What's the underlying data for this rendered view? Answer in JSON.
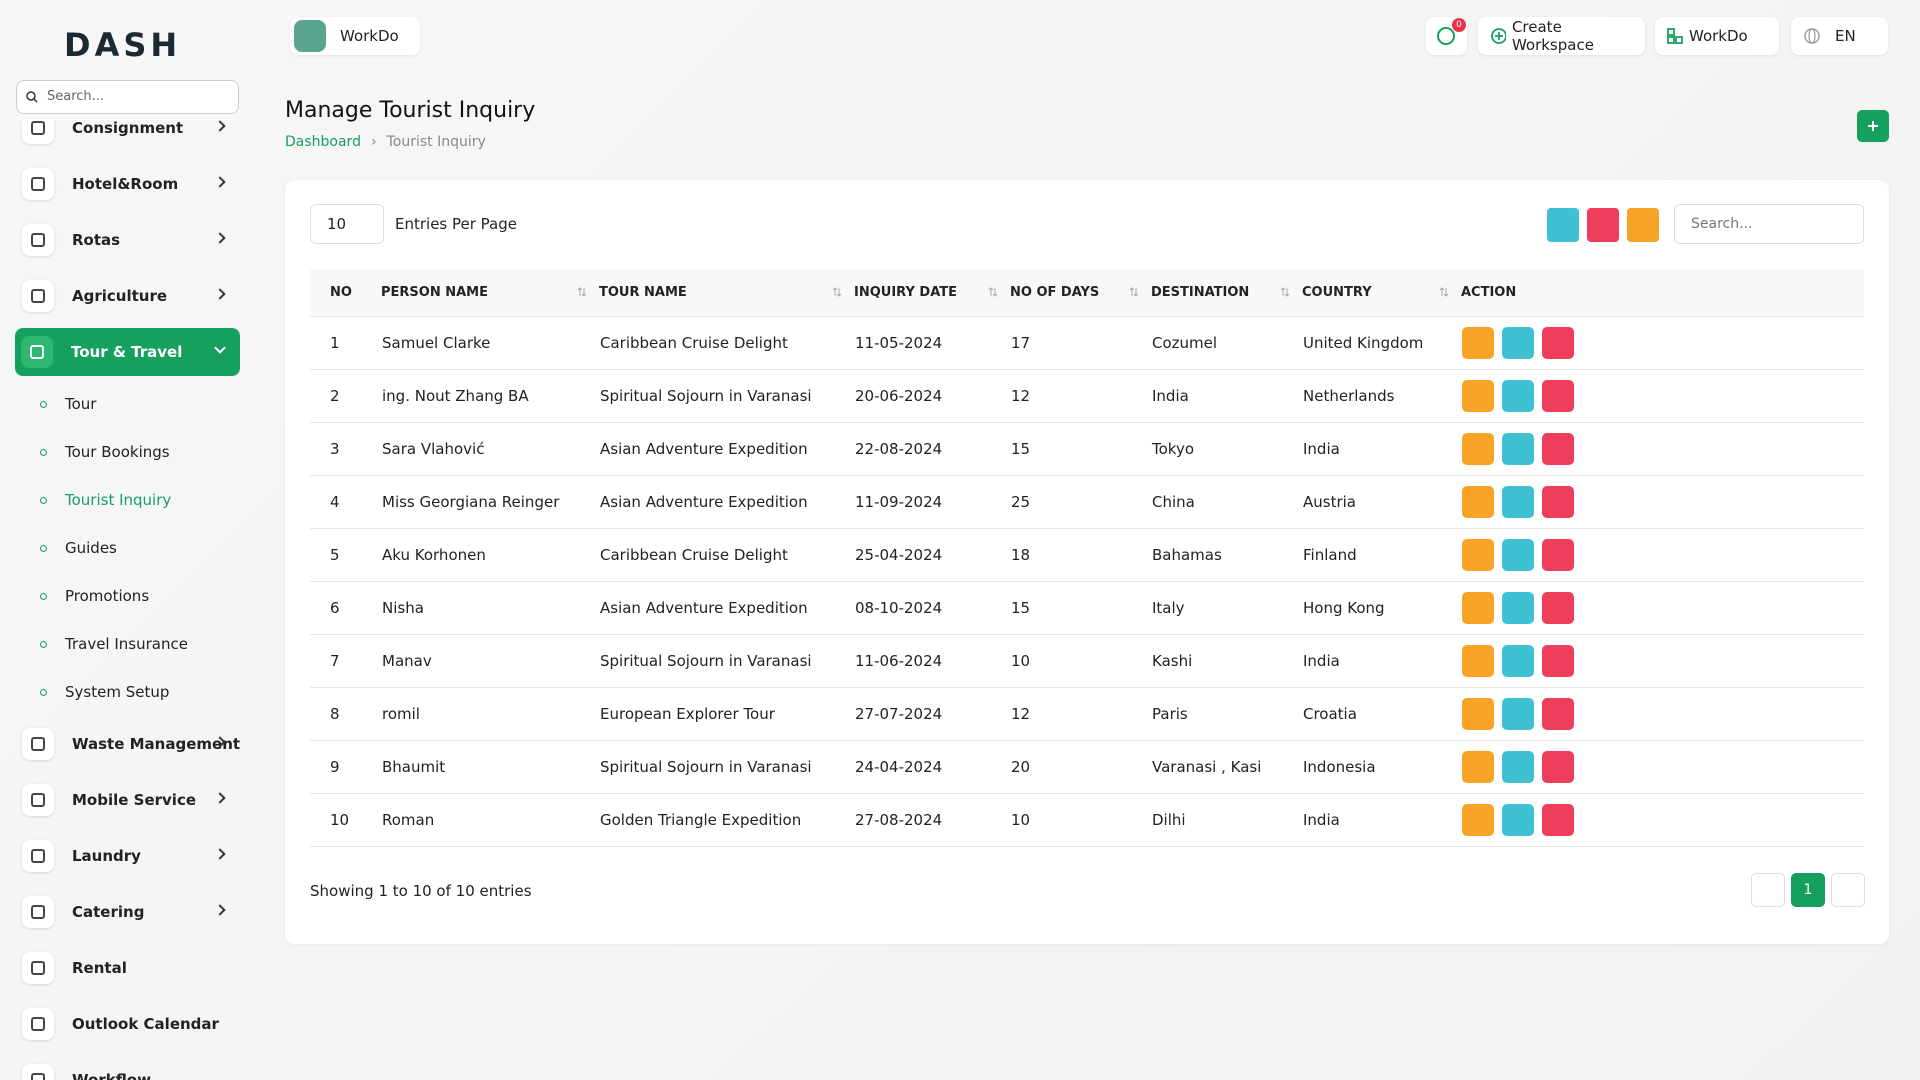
{
  "sidebar": {
    "logo": "DASH",
    "search_placeholder": "Search...",
    "items": [
      {
        "label": "Consignment",
        "kind": "main",
        "arrow": true
      },
      {
        "label": "Hotel&Room",
        "kind": "main",
        "arrow": true
      },
      {
        "label": "Rotas",
        "kind": "main",
        "arrow": true
      },
      {
        "label": "Agriculture",
        "kind": "main",
        "arrow": true
      },
      {
        "label": "Tour & Travel",
        "kind": "active",
        "arrow": true
      },
      {
        "label": "Tour",
        "kind": "sub"
      },
      {
        "label": "Tour Bookings",
        "kind": "sub"
      },
      {
        "label": "Tourist Inquiry",
        "kind": "sub-active"
      },
      {
        "label": "Guides",
        "kind": "sub"
      },
      {
        "label": "Promotions",
        "kind": "sub"
      },
      {
        "label": "Travel Insurance",
        "kind": "sub"
      },
      {
        "label": "System Setup",
        "kind": "sub"
      },
      {
        "label": "Waste Management",
        "kind": "main",
        "arrow": true
      },
      {
        "label": "Mobile Service",
        "kind": "main",
        "arrow": true
      },
      {
        "label": "Laundry",
        "kind": "main",
        "arrow": true
      },
      {
        "label": "Catering",
        "kind": "main",
        "arrow": true
      },
      {
        "label": "Rental",
        "kind": "main"
      },
      {
        "label": "Outlook Calendar",
        "kind": "main"
      },
      {
        "label": "Workflow",
        "kind": "main"
      }
    ]
  },
  "topbar": {
    "workspace": "WorkDo",
    "notifications": "0",
    "create_workspace": "Create Workspace",
    "user": "WorkDo",
    "language": "EN"
  },
  "page": {
    "title": "Manage Tourist Inquiry",
    "breadcrumb": [
      "Dashboard",
      "Tourist Inquiry"
    ]
  },
  "table": {
    "entries": "10",
    "entries_label": "Entries Per Page",
    "search_placeholder": "Search...",
    "columns": [
      "NO",
      "PERSON NAME",
      "TOUR NAME",
      "INQUIRY DATE",
      "NO OF DAYS",
      "DESTINATION",
      "COUNTRY",
      "ACTION"
    ],
    "rows": [
      [
        "1",
        "Samuel Clarke",
        "Caribbean Cruise Delight",
        "11-05-2024",
        "17",
        "Cozumel",
        "United Kingdom"
      ],
      [
        "2",
        "ing. Nout Zhang BA",
        "Spiritual Sojourn in Varanasi",
        "20-06-2024",
        "12",
        "India",
        "Netherlands"
      ],
      [
        "3",
        "Sara Vlahović",
        "Asian Adventure Expedition",
        "22-08-2024",
        "15",
        "Tokyo",
        "India"
      ],
      [
        "4",
        "Miss Georgiana Reinger",
        "Asian Adventure Expedition",
        "11-09-2024",
        "25",
        "China",
        "Austria"
      ],
      [
        "5",
        "Aku Korhonen",
        "Caribbean Cruise Delight",
        "25-04-2024",
        "18",
        "Bahamas",
        "Finland"
      ],
      [
        "6",
        "Nisha",
        "Asian Adventure Expedition",
        "08-10-2024",
        "15",
        "Italy",
        "Hong Kong"
      ],
      [
        "7",
        "Manav",
        "Spiritual Sojourn in Varanasi",
        "11-06-2024",
        "10",
        "Kashi",
        "India"
      ],
      [
        "8",
        "romil",
        "European Explorer Tour",
        "27-07-2024",
        "12",
        "Paris",
        "Croatia"
      ],
      [
        "9",
        "Bhaumit",
        "Spiritual Sojourn in Varanasi",
        "24-04-2024",
        "20",
        "Varanasi , Kasi",
        "Indonesia"
      ],
      [
        "10",
        "Roman",
        "Golden Triangle Expedition",
        "27-08-2024",
        "10",
        "Dilhi",
        "India"
      ]
    ],
    "footer": "Showing 1 to 10 of 10 entries",
    "current_page": "1"
  }
}
